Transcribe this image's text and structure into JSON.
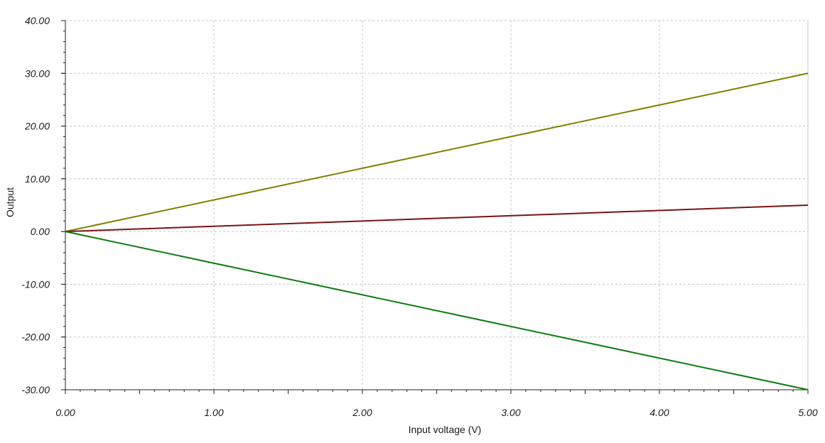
{
  "chart_data": {
    "type": "line",
    "title": "",
    "xlabel": "Input voltage (V)",
    "ylabel": "Output",
    "xlim": [
      0,
      5
    ],
    "ylim": [
      -30,
      40
    ],
    "x_ticks": [
      "0.00",
      "1.00",
      "2.00",
      "3.00",
      "4.00",
      "5.00"
    ],
    "y_ticks": [
      "40.00",
      "30.00",
      "20.00",
      "10.00",
      "0.00",
      "-10.00",
      "-20.00",
      "-30.00"
    ],
    "grid": true,
    "x": [
      0,
      5
    ],
    "series": [
      {
        "color": "#808000",
        "values": [
          0,
          30
        ]
      },
      {
        "color": "#7a1414",
        "values": [
          0,
          5
        ]
      },
      {
        "color": "#0f7a0f",
        "values": [
          0,
          -30
        ]
      }
    ]
  }
}
